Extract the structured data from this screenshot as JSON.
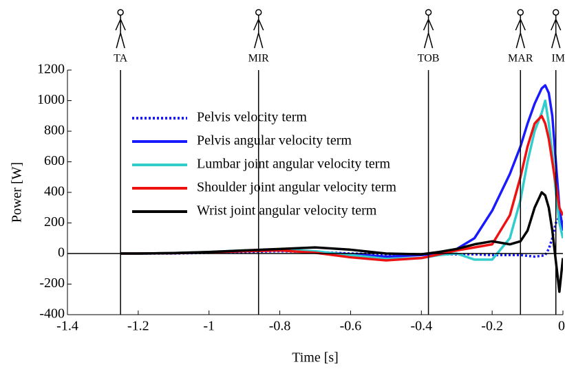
{
  "chart_data": {
    "type": "line",
    "xlabel": "Time [s]",
    "ylabel": "Power [W]",
    "xlim": [
      -1.4,
      0
    ],
    "ylim": [
      -400,
      1200
    ],
    "xticks": [
      -1.4,
      -1.2,
      -1,
      -0.8,
      -0.6,
      -0.4,
      -0.2,
      0
    ],
    "yticks": [
      -400,
      -200,
      0,
      200,
      400,
      600,
      800,
      1000,
      1200
    ],
    "events": [
      {
        "label": "TA",
        "x": -1.25
      },
      {
        "label": "MIR",
        "x": -0.86
      },
      {
        "label": "TOB",
        "x": -0.38
      },
      {
        "label": "MAR",
        "x": -0.12
      },
      {
        "label": "IM",
        "x": -0.02
      }
    ],
    "x": [
      -1.25,
      -1.2,
      -1.1,
      -1.0,
      -0.9,
      -0.8,
      -0.7,
      -0.6,
      -0.5,
      -0.4,
      -0.35,
      -0.3,
      -0.25,
      -0.2,
      -0.15,
      -0.12,
      -0.1,
      -0.08,
      -0.06,
      -0.05,
      -0.04,
      -0.03,
      -0.02,
      -0.01,
      0
    ],
    "series": [
      {
        "name": "Pelvis velocity term",
        "color": "#1a1aff",
        "style": "dotted",
        "values": [
          0,
          0,
          0,
          5,
          10,
          15,
          10,
          0,
          -5,
          -5,
          -5,
          -5,
          -5,
          -10,
          -10,
          -10,
          -15,
          -20,
          -15,
          -10,
          30,
          100,
          200,
          240,
          200
        ]
      },
      {
        "name": "Pelvis angular velocity term",
        "color": "#1a1aff",
        "style": "solid",
        "values": [
          0,
          0,
          2,
          8,
          15,
          20,
          10,
          -5,
          -20,
          -10,
          0,
          30,
          100,
          280,
          520,
          700,
          850,
          980,
          1080,
          1100,
          1050,
          900,
          600,
          300,
          150
        ]
      },
      {
        "name": "Lumbar joint angular velocity term",
        "color": "#33cccc",
        "style": "solid",
        "values": [
          0,
          0,
          3,
          10,
          20,
          25,
          15,
          -10,
          -35,
          -30,
          -10,
          0,
          -40,
          -40,
          100,
          350,
          600,
          800,
          920,
          1000,
          850,
          650,
          400,
          200,
          100
        ]
      },
      {
        "name": "Shoulder joint angular velocity term",
        "color": "#ee1111",
        "style": "solid",
        "values": [
          0,
          0,
          2,
          8,
          15,
          20,
          5,
          -25,
          -45,
          -30,
          -5,
          20,
          40,
          60,
          250,
          500,
          700,
          850,
          900,
          850,
          750,
          600,
          450,
          300,
          250
        ]
      },
      {
        "name": "Wrist joint angular velocity term",
        "color": "#000000",
        "style": "solid",
        "values": [
          0,
          0,
          3,
          10,
          20,
          30,
          40,
          25,
          0,
          -5,
          10,
          30,
          60,
          80,
          60,
          80,
          150,
          300,
          400,
          380,
          300,
          150,
          -50,
          -250,
          -30
        ]
      }
    ]
  }
}
